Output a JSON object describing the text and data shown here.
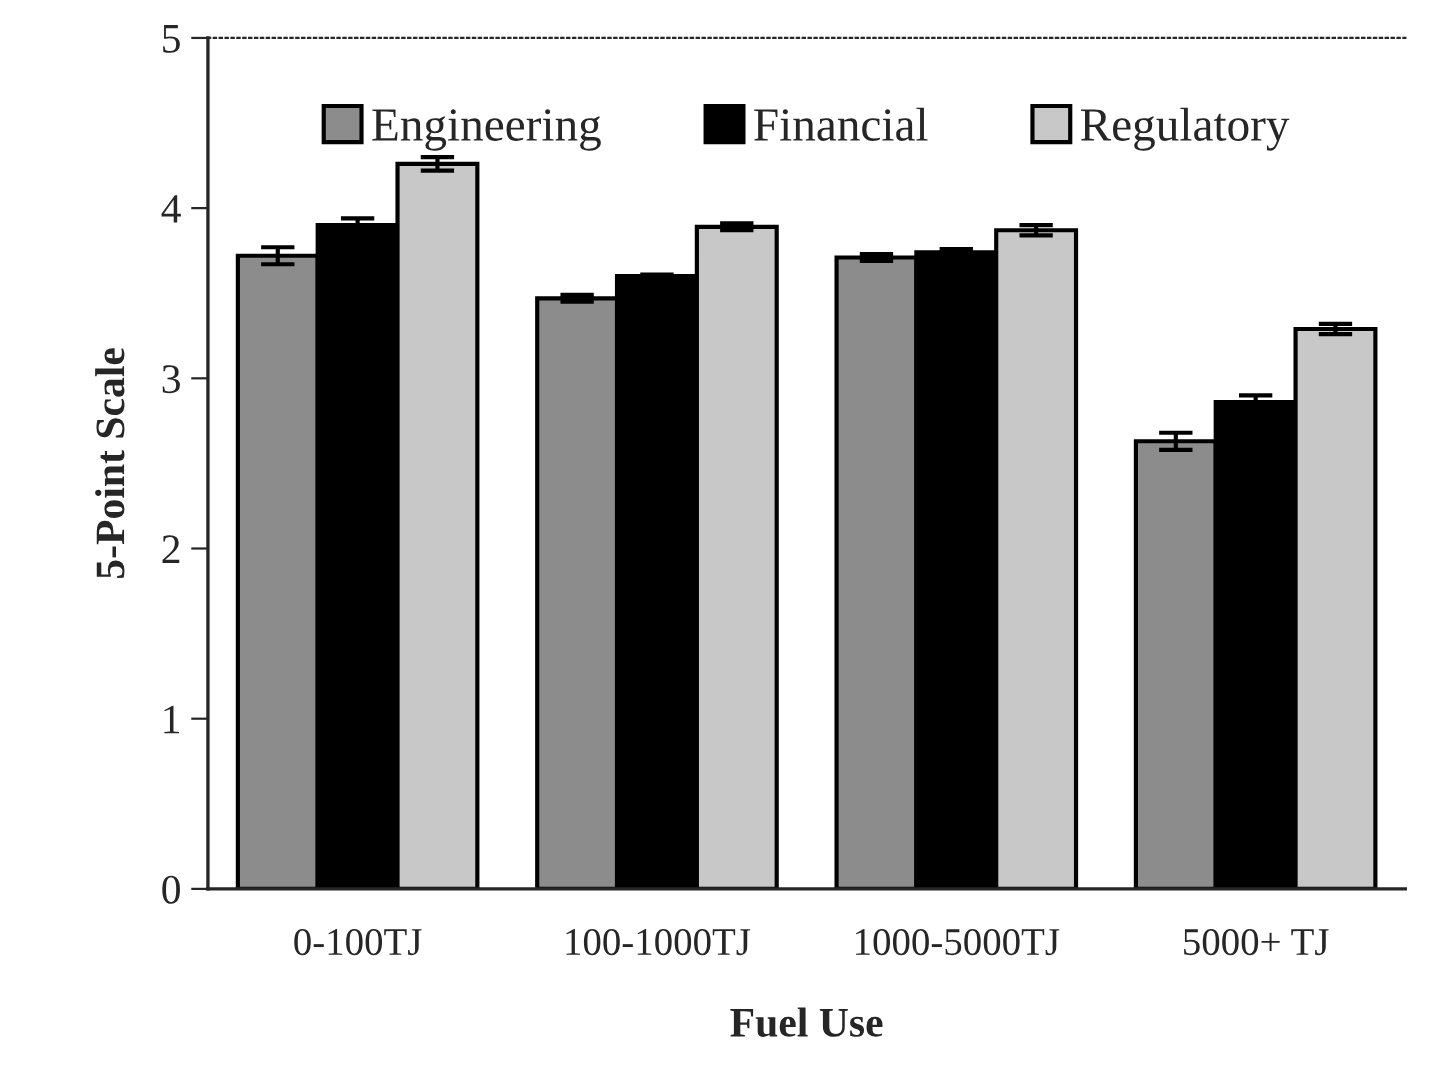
{
  "chart_data": {
    "type": "bar",
    "xlabel": "Fuel Use",
    "ylabel": "5-Point Scale",
    "categories": [
      "0-100TJ",
      "100-1000TJ",
      "1000-5000TJ",
      "5000+ TJ"
    ],
    "series": [
      {
        "name": "Engineering",
        "color": "#8c8c8c",
        "values": [
          3.72,
          3.47,
          3.71,
          2.63
        ],
        "errors": [
          0.05,
          0.02,
          0.02,
          0.05
        ]
      },
      {
        "name": "Financial",
        "color": "#000000",
        "values": [
          3.9,
          3.6,
          3.74,
          2.86
        ],
        "errors": [
          0.04,
          0.01,
          0.02,
          0.04
        ]
      },
      {
        "name": "Regulatory",
        "color": "#c8c8c8",
        "values": [
          4.26,
          3.89,
          3.87,
          3.29
        ],
        "errors": [
          0.04,
          0.02,
          0.03,
          0.03
        ]
      }
    ],
    "ylim": [
      0,
      5
    ],
    "yticks": [
      0,
      1,
      2,
      3,
      4,
      5
    ],
    "grid": false,
    "legend": "top"
  }
}
